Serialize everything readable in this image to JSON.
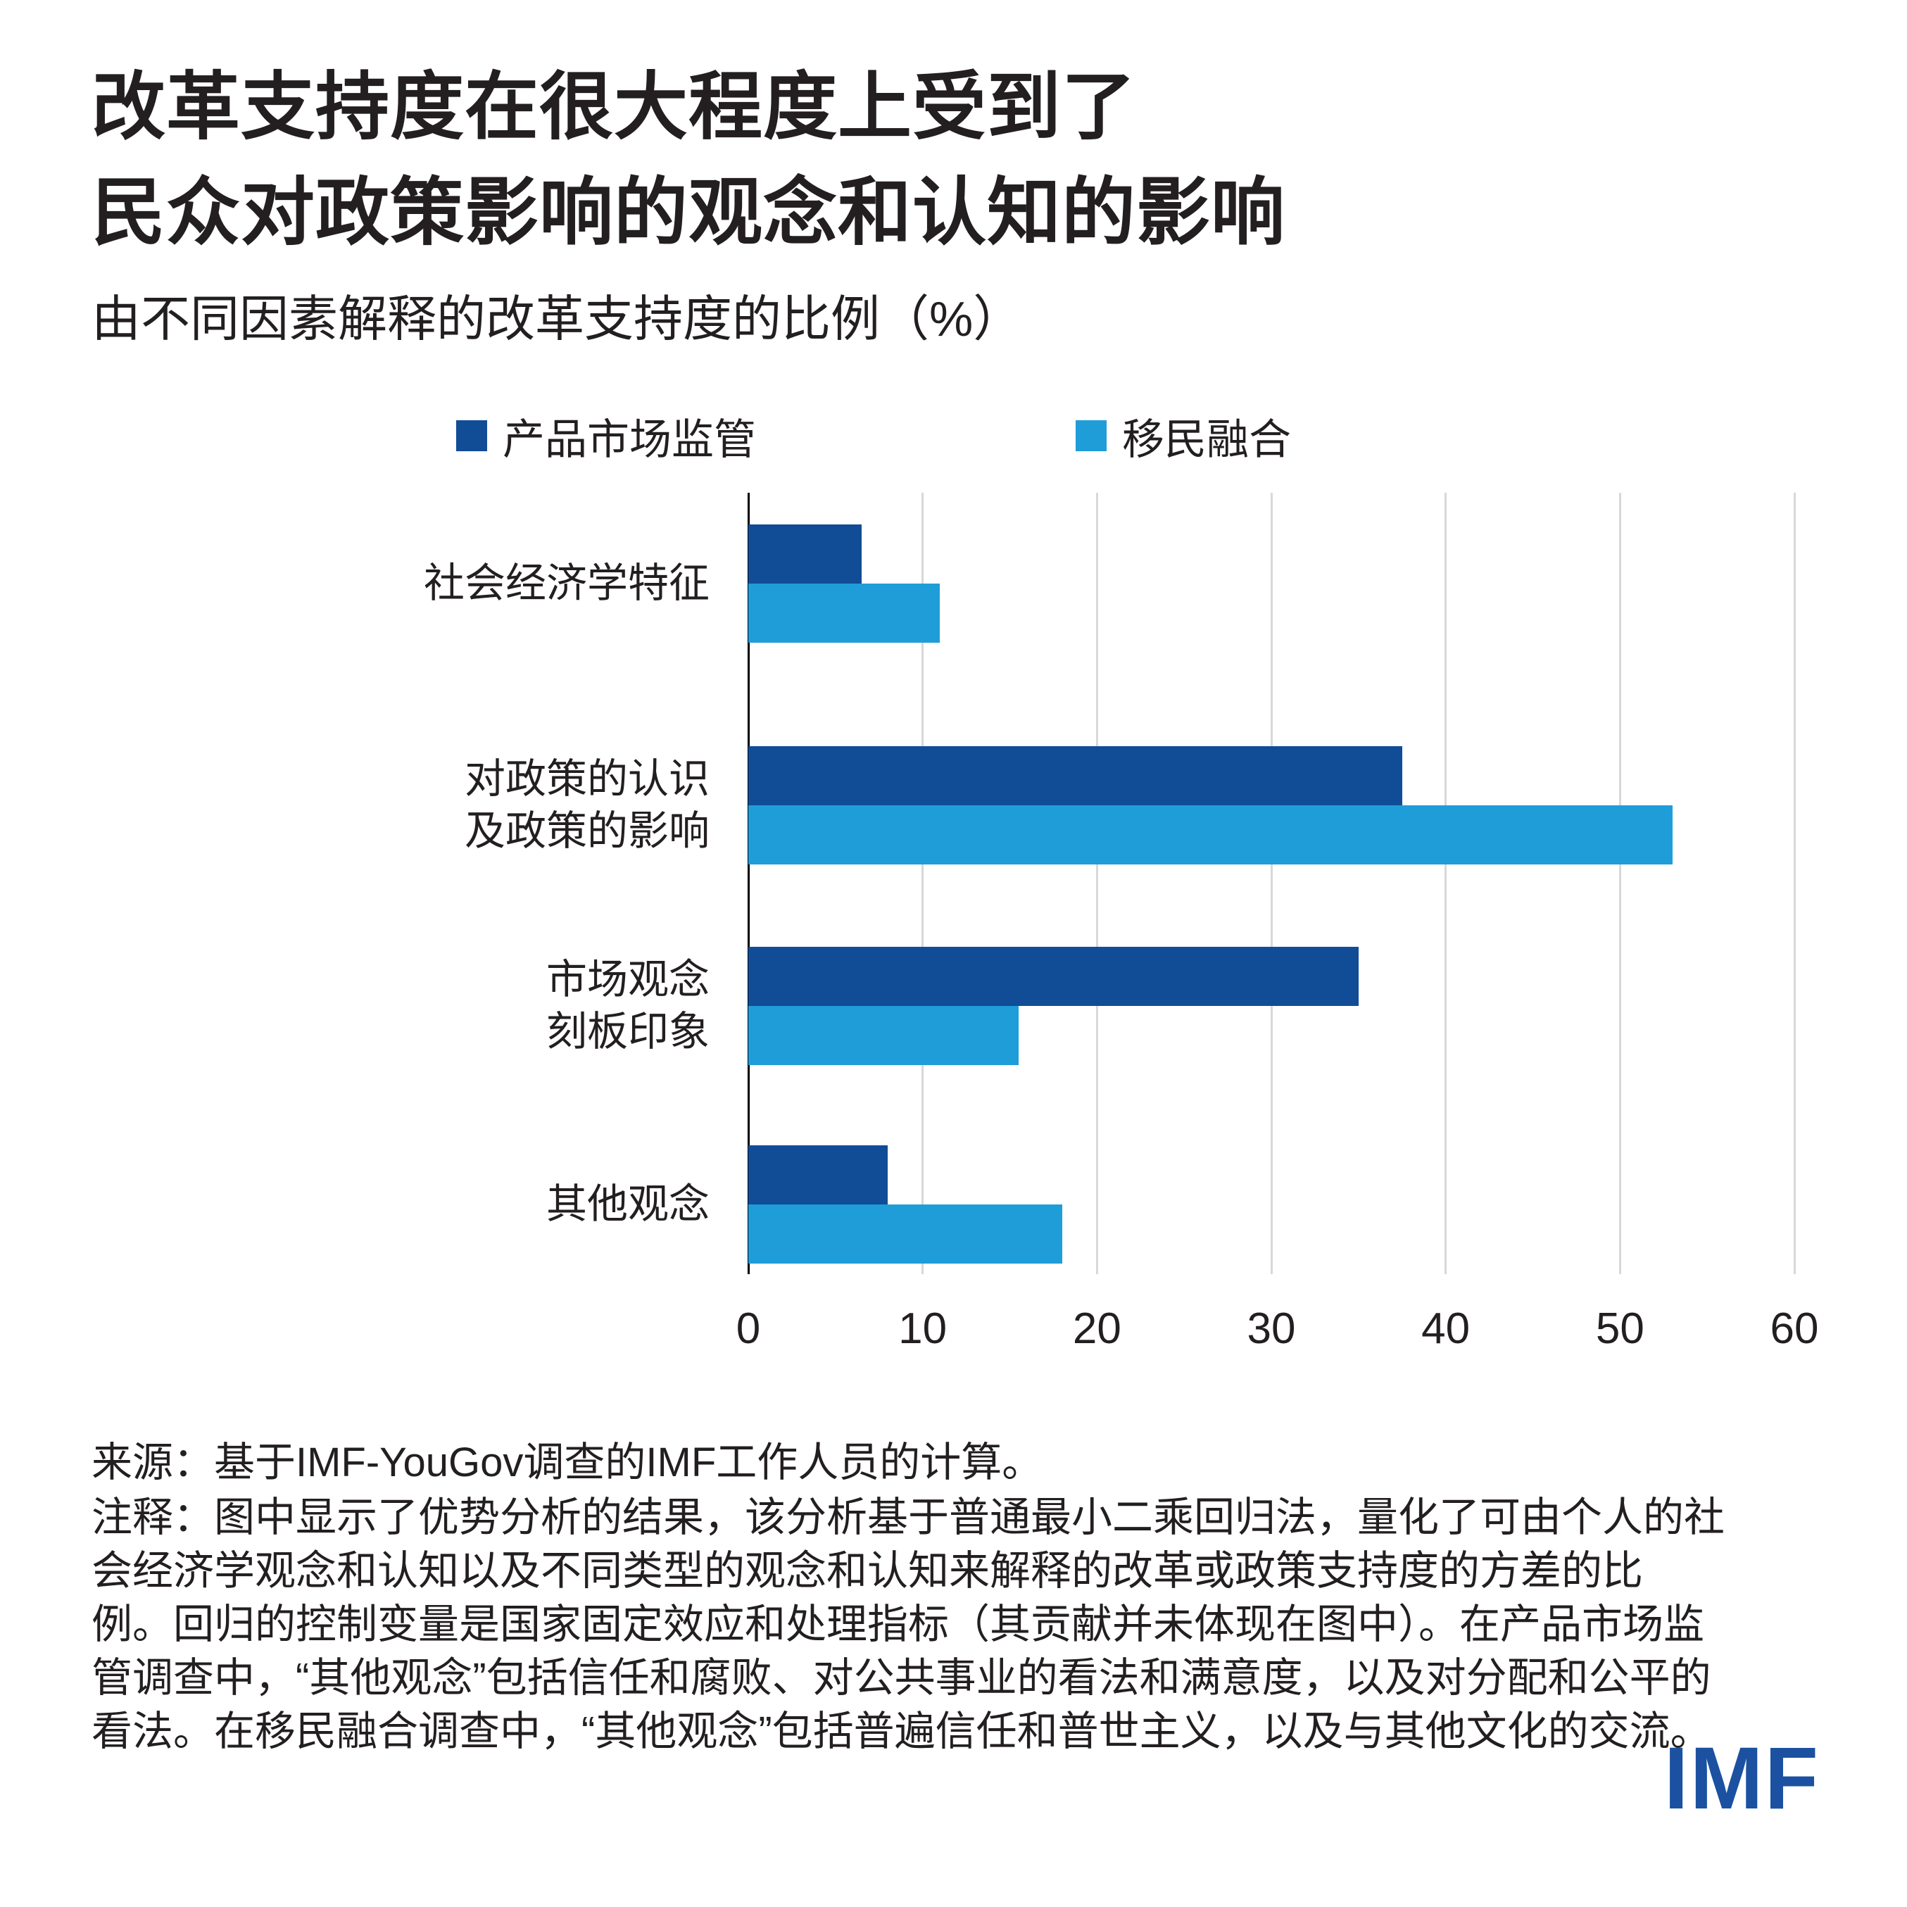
{
  "title": {
    "line1": "改革支持度在很大程度上受到了",
    "line2": "民众对政策影响的观念和认知的影响"
  },
  "subtitle": "由不同因素解释的改革支持度的比例（%）",
  "chart_data": {
    "type": "bar",
    "orientation": "horizontal",
    "title": "改革支持度在很大程度上受到了民众对政策影响的观念和认知的影响",
    "subtitle": "由不同因素解释的改革支持度的比例（%）",
    "xlabel": "",
    "ylabel": "",
    "xlim": [
      0,
      60
    ],
    "xticks": [
      0,
      10,
      20,
      30,
      40,
      50,
      60
    ],
    "grid": "vertical",
    "legend_position": "top",
    "categories": [
      [
        "社会经济学特征"
      ],
      [
        "对政策的认识",
        "及政策的影响"
      ],
      [
        "市场观念",
        "刻板印象"
      ],
      [
        "其他观念"
      ]
    ],
    "series": [
      {
        "name": "产品市场监管",
        "color": "#114C97",
        "values": [
          6.5,
          37.5,
          35,
          8
        ]
      },
      {
        "name": "移民融合",
        "color": "#1F9DD9",
        "values": [
          11,
          53,
          15.5,
          18
        ]
      }
    ]
  },
  "source": "来源：基于IMF-YouGov调查的IMF工作人员的计算。",
  "notes": {
    "lines": [
      "注释：图中显示了优势分析的结果，该分析基于普通最小二乘回归法，量化了可由个人的社",
      "会经济学观念和认知以及不同类型的观念和认知来解释的改革或政策支持度的方差的比",
      "例。回归的控制变量是国家固定效应和处理指标（其贡献并未体现在图中）。在产品市场监",
      "管调查中，“其他观念”包括信任和腐败、对公共事业的看法和满意度，以及对分配和公平的",
      "看法。在移民融合调查中，“其他观念”包括普遍信任和普世主义，以及与其他文化的交流。"
    ]
  },
  "logo": "IMF",
  "colors": {
    "series1": "#114C97",
    "series2": "#1F9DD9",
    "gridline": "#d8d8d8",
    "axis": "#000000",
    "text": "#231f20",
    "logo": "#1B51A0"
  }
}
